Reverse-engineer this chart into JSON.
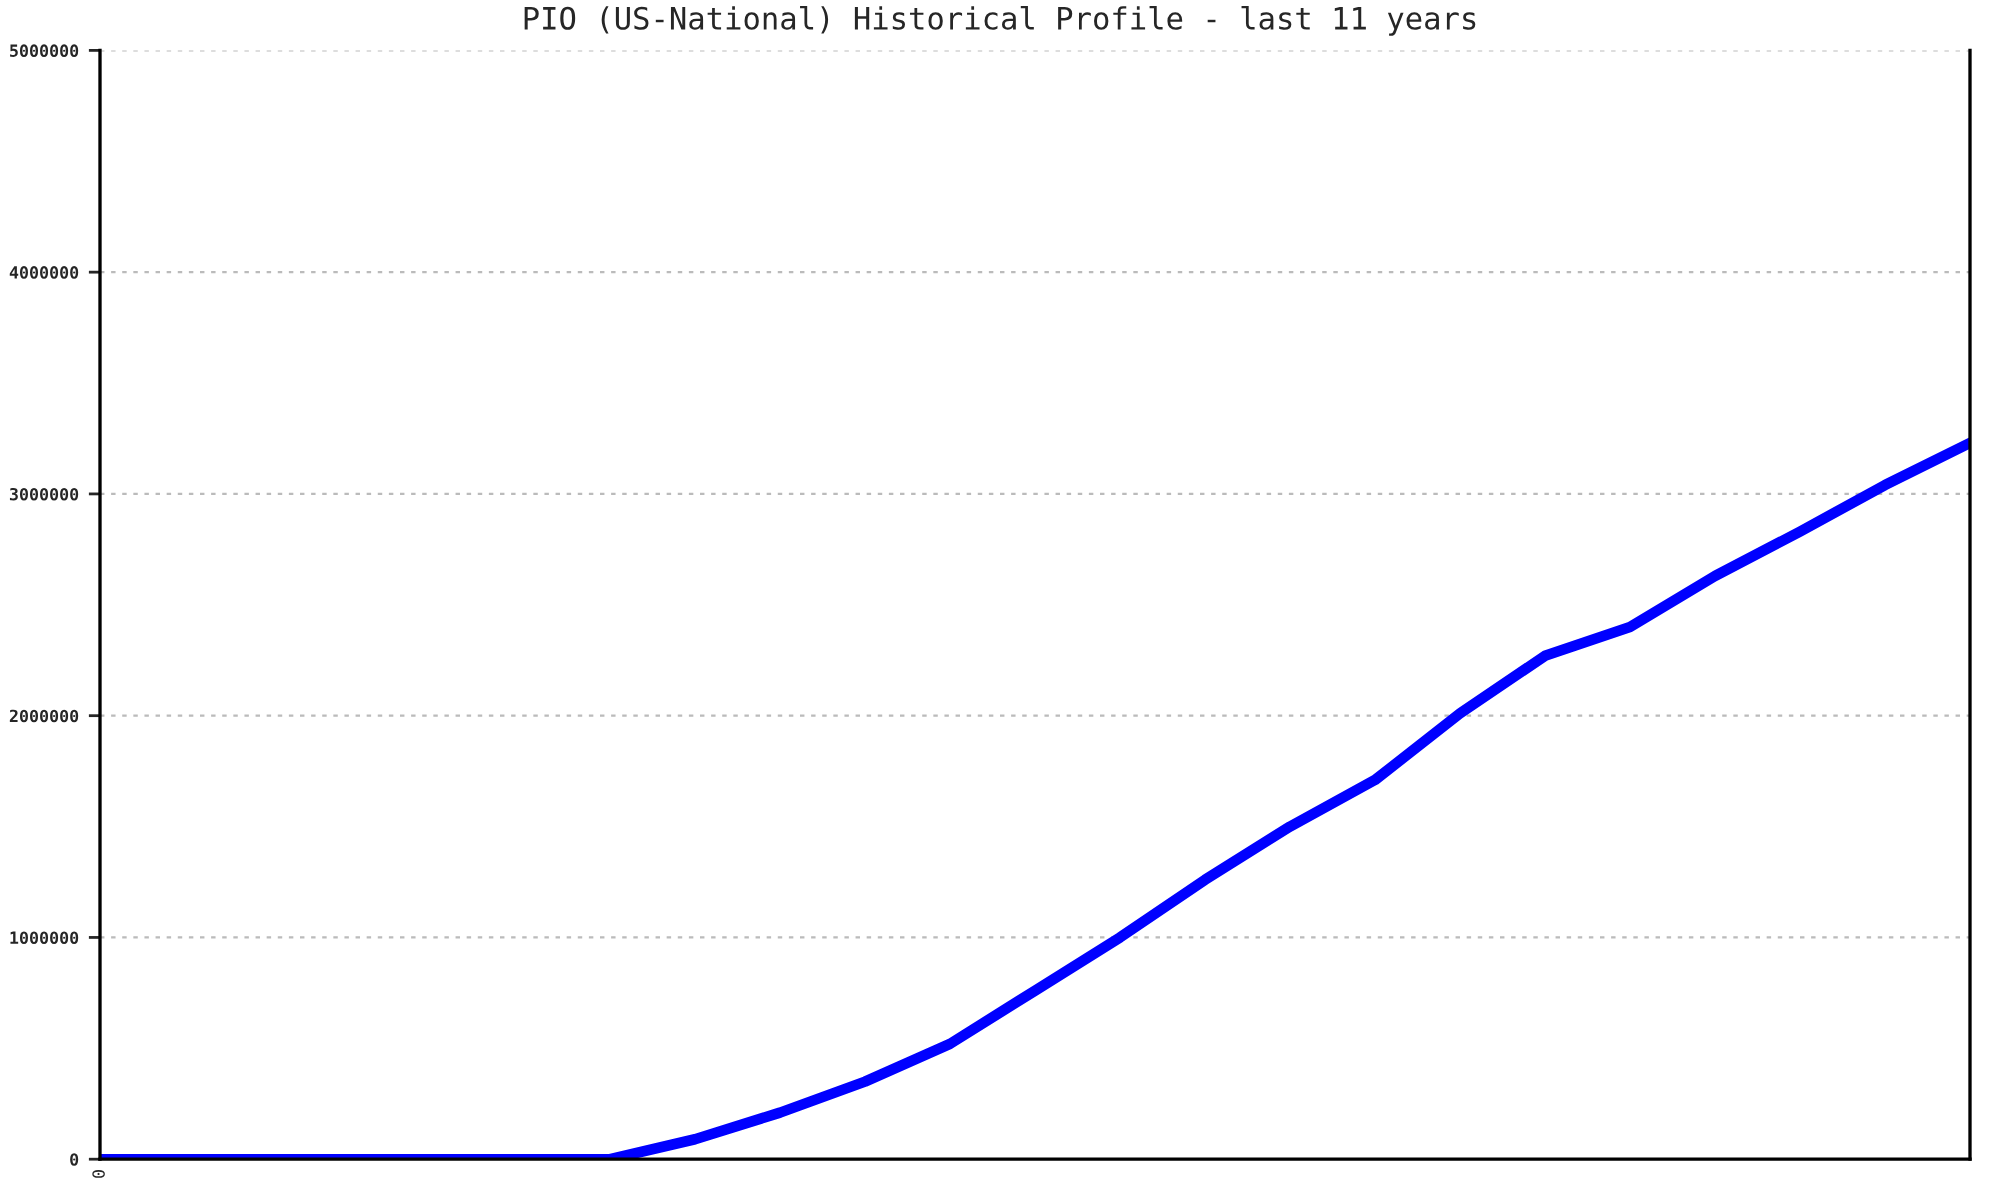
{
  "chart_data": {
    "type": "line",
    "title": "PIO (US-National) Historical Profile - last 11 years",
    "categories": [
      "0",
      null,
      null,
      null,
      null,
      null,
      null,
      null,
      null,
      null,
      null,
      null,
      null,
      null,
      null,
      null,
      null,
      null,
      null,
      null,
      null,
      null,
      null
    ],
    "series": [
      {
        "color": "#0000ff",
        "values": [
          0,
          0,
          0,
          0,
          0,
          0,
          0,
          90000,
          210000,
          350000,
          520000,
          760000,
          1000000,
          1260000,
          1500000,
          1710000,
          2010000,
          2270000,
          2400000,
          2630000,
          2830000,
          3040000,
          3230000
        ]
      }
    ],
    "ylim": [
      0,
      5000000
    ],
    "yticks": [
      0,
      1000000,
      2000000,
      3000000,
      4000000,
      5000000
    ],
    "grid": "y",
    "marker": "none",
    "line_style": "solid"
  }
}
